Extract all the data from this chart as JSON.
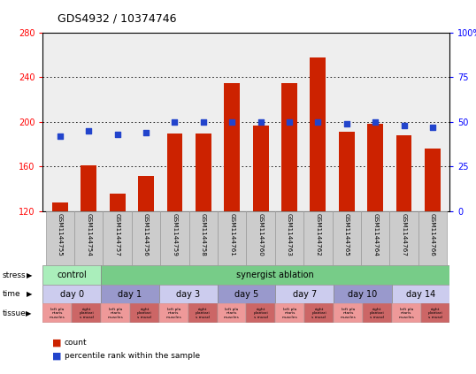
{
  "title": "GDS4932 / 10374746",
  "samples": [
    "GSM1144755",
    "GSM1144754",
    "GSM1144757",
    "GSM1144756",
    "GSM1144759",
    "GSM1144758",
    "GSM1144761",
    "GSM1144760",
    "GSM1144763",
    "GSM1144762",
    "GSM1144765",
    "GSM1144764",
    "GSM1144767",
    "GSM1144766"
  ],
  "counts": [
    128,
    161,
    136,
    152,
    190,
    190,
    235,
    197,
    235,
    258,
    191,
    198,
    188,
    176
  ],
  "percentiles": [
    42,
    45,
    43,
    44,
    50,
    50,
    50,
    50,
    50,
    50,
    49,
    50,
    48,
    47
  ],
  "ymin": 120,
  "ymax": 280,
  "yticks_left": [
    120,
    160,
    200,
    240,
    280
  ],
  "yticks_right": [
    0,
    25,
    50,
    75,
    100
  ],
  "bar_color": "#cc2200",
  "dot_color": "#2244cc",
  "stress_control_label": "control",
  "stress_ablation_label": "synergist ablation",
  "stress_control_color": "#aaeebb",
  "stress_ablation_color": "#77cc88",
  "time_labels": [
    "day 0",
    "day 1",
    "day 3",
    "day 5",
    "day 7",
    "day 10",
    "day 14"
  ],
  "time_color_light": "#ccccee",
  "time_color_dark": "#9999cc",
  "tissue_left_label": "left pla\nntaris\nmuscles",
  "tissue_right_label": "right\nplantari\ns muscl",
  "tissue_left_color": "#ee9999",
  "tissue_right_color": "#cc6666",
  "legend_count_color": "#cc2200",
  "legend_percentile_color": "#2244cc",
  "bg_color": "#ffffff",
  "plot_bg_color": "#eeeeee",
  "sample_bg_color": "#cccccc"
}
